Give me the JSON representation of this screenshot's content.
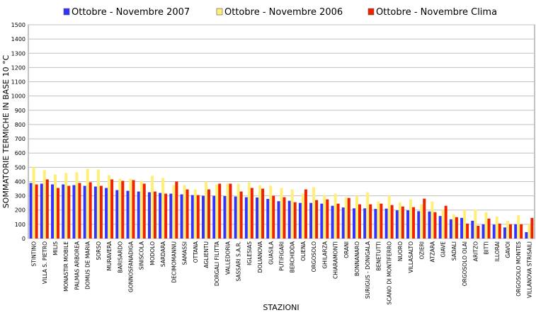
{
  "chart_data": {
    "type": "bar",
    "title": "",
    "xlabel": "STAZIONI",
    "ylabel": "SOMMATORIE TERMICHE IN BASE 10 °C",
    "ylim": [
      0,
      1500
    ],
    "yticks": [
      0,
      100,
      200,
      300,
      400,
      500,
      600,
      700,
      800,
      900,
      1000,
      1100,
      1200,
      1300,
      1400,
      1500
    ],
    "grid": true,
    "legend_position": "top",
    "categories": [
      "STINTINO",
      "VILLA S. PIETRO",
      "MILIS",
      "MONASTIR MOBILE",
      "PALMAS ARBOREA",
      "DOMUS DE MARIA",
      "SORSO",
      "MURAVERA",
      "BARISARDO",
      "GONNOSFANADIGA",
      "SINISCOLA",
      "MODOLO",
      "SARDARA",
      "DECIMOMANNU",
      "SAMASSI",
      "OTTANA",
      "AGLIENTU",
      "DORGALI FILITTA",
      "VALLEDORIA",
      "SASSARI S.A.R.",
      "IGLESIAS",
      "DOLIANOVA",
      "GUASILA",
      "PUTIFIGARI",
      "BERCHIDDA",
      "OLIENA",
      "ORGOSOLO",
      "GHILARZA",
      "CHIARAMONTI",
      "ORANI",
      "BONNANARO",
      "SURIGUS - DONIGALA",
      "BENETUTTI",
      "SCANO DI MONTIFERRO",
      "NUORO",
      "VILLASALTO",
      "OZIERI",
      "ATZARA",
      "GIAVE",
      "SADALI",
      "ORGOSOLO OLAI",
      "ARITZO",
      "BITTI",
      "ILLORAI",
      "GAVOI",
      "ORGOSOLO MONTES",
      "VILLANOVA STRISAILI"
    ],
    "series": [
      {
        "name": "Ottobre - Novembre 2007",
        "color": "#3333ff",
        "values": [
          390,
          385,
          380,
          380,
          375,
          370,
          365,
          355,
          340,
          335,
          330,
          325,
          320,
          315,
          310,
          305,
          300,
          300,
          298,
          295,
          290,
          288,
          278,
          262,
          265,
          250,
          250,
          245,
          230,
          218,
          212,
          212,
          208,
          210,
          198,
          198,
          192,
          190,
          158,
          135,
          145,
          125,
          100,
          98,
          78,
          100,
          45
        ]
      },
      {
        "name": "Ottobre - Novembre 2006",
        "color": "#ffee77",
        "values": [
          500,
          480,
          450,
          460,
          465,
          490,
          485,
          445,
          420,
          420,
          405,
          440,
          425,
          375,
          375,
          345,
          400,
          380,
          385,
          385,
          395,
          375,
          370,
          355,
          345,
          315,
          360,
          305,
          315,
          290,
          300,
          325,
          260,
          300,
          255,
          275,
          240,
          260,
          200,
          170,
          200,
          205,
          185,
          155,
          125,
          165,
          100
        ]
      },
      {
        "name": "Ottobre - Novembre Clima",
        "color": "#ee2200",
        "values": [
          380,
          415,
          355,
          370,
          390,
          395,
          370,
          415,
          405,
          410,
          385,
          330,
          315,
          400,
          345,
          305,
          345,
          385,
          385,
          330,
          355,
          350,
          300,
          290,
          255,
          345,
          270,
          275,
          245,
          285,
          240,
          240,
          245,
          235,
          225,
          220,
          280,
          185,
          230,
          150,
          105,
          90,
          140,
          105,
          100,
          100,
          145
        ]
      }
    ]
  }
}
